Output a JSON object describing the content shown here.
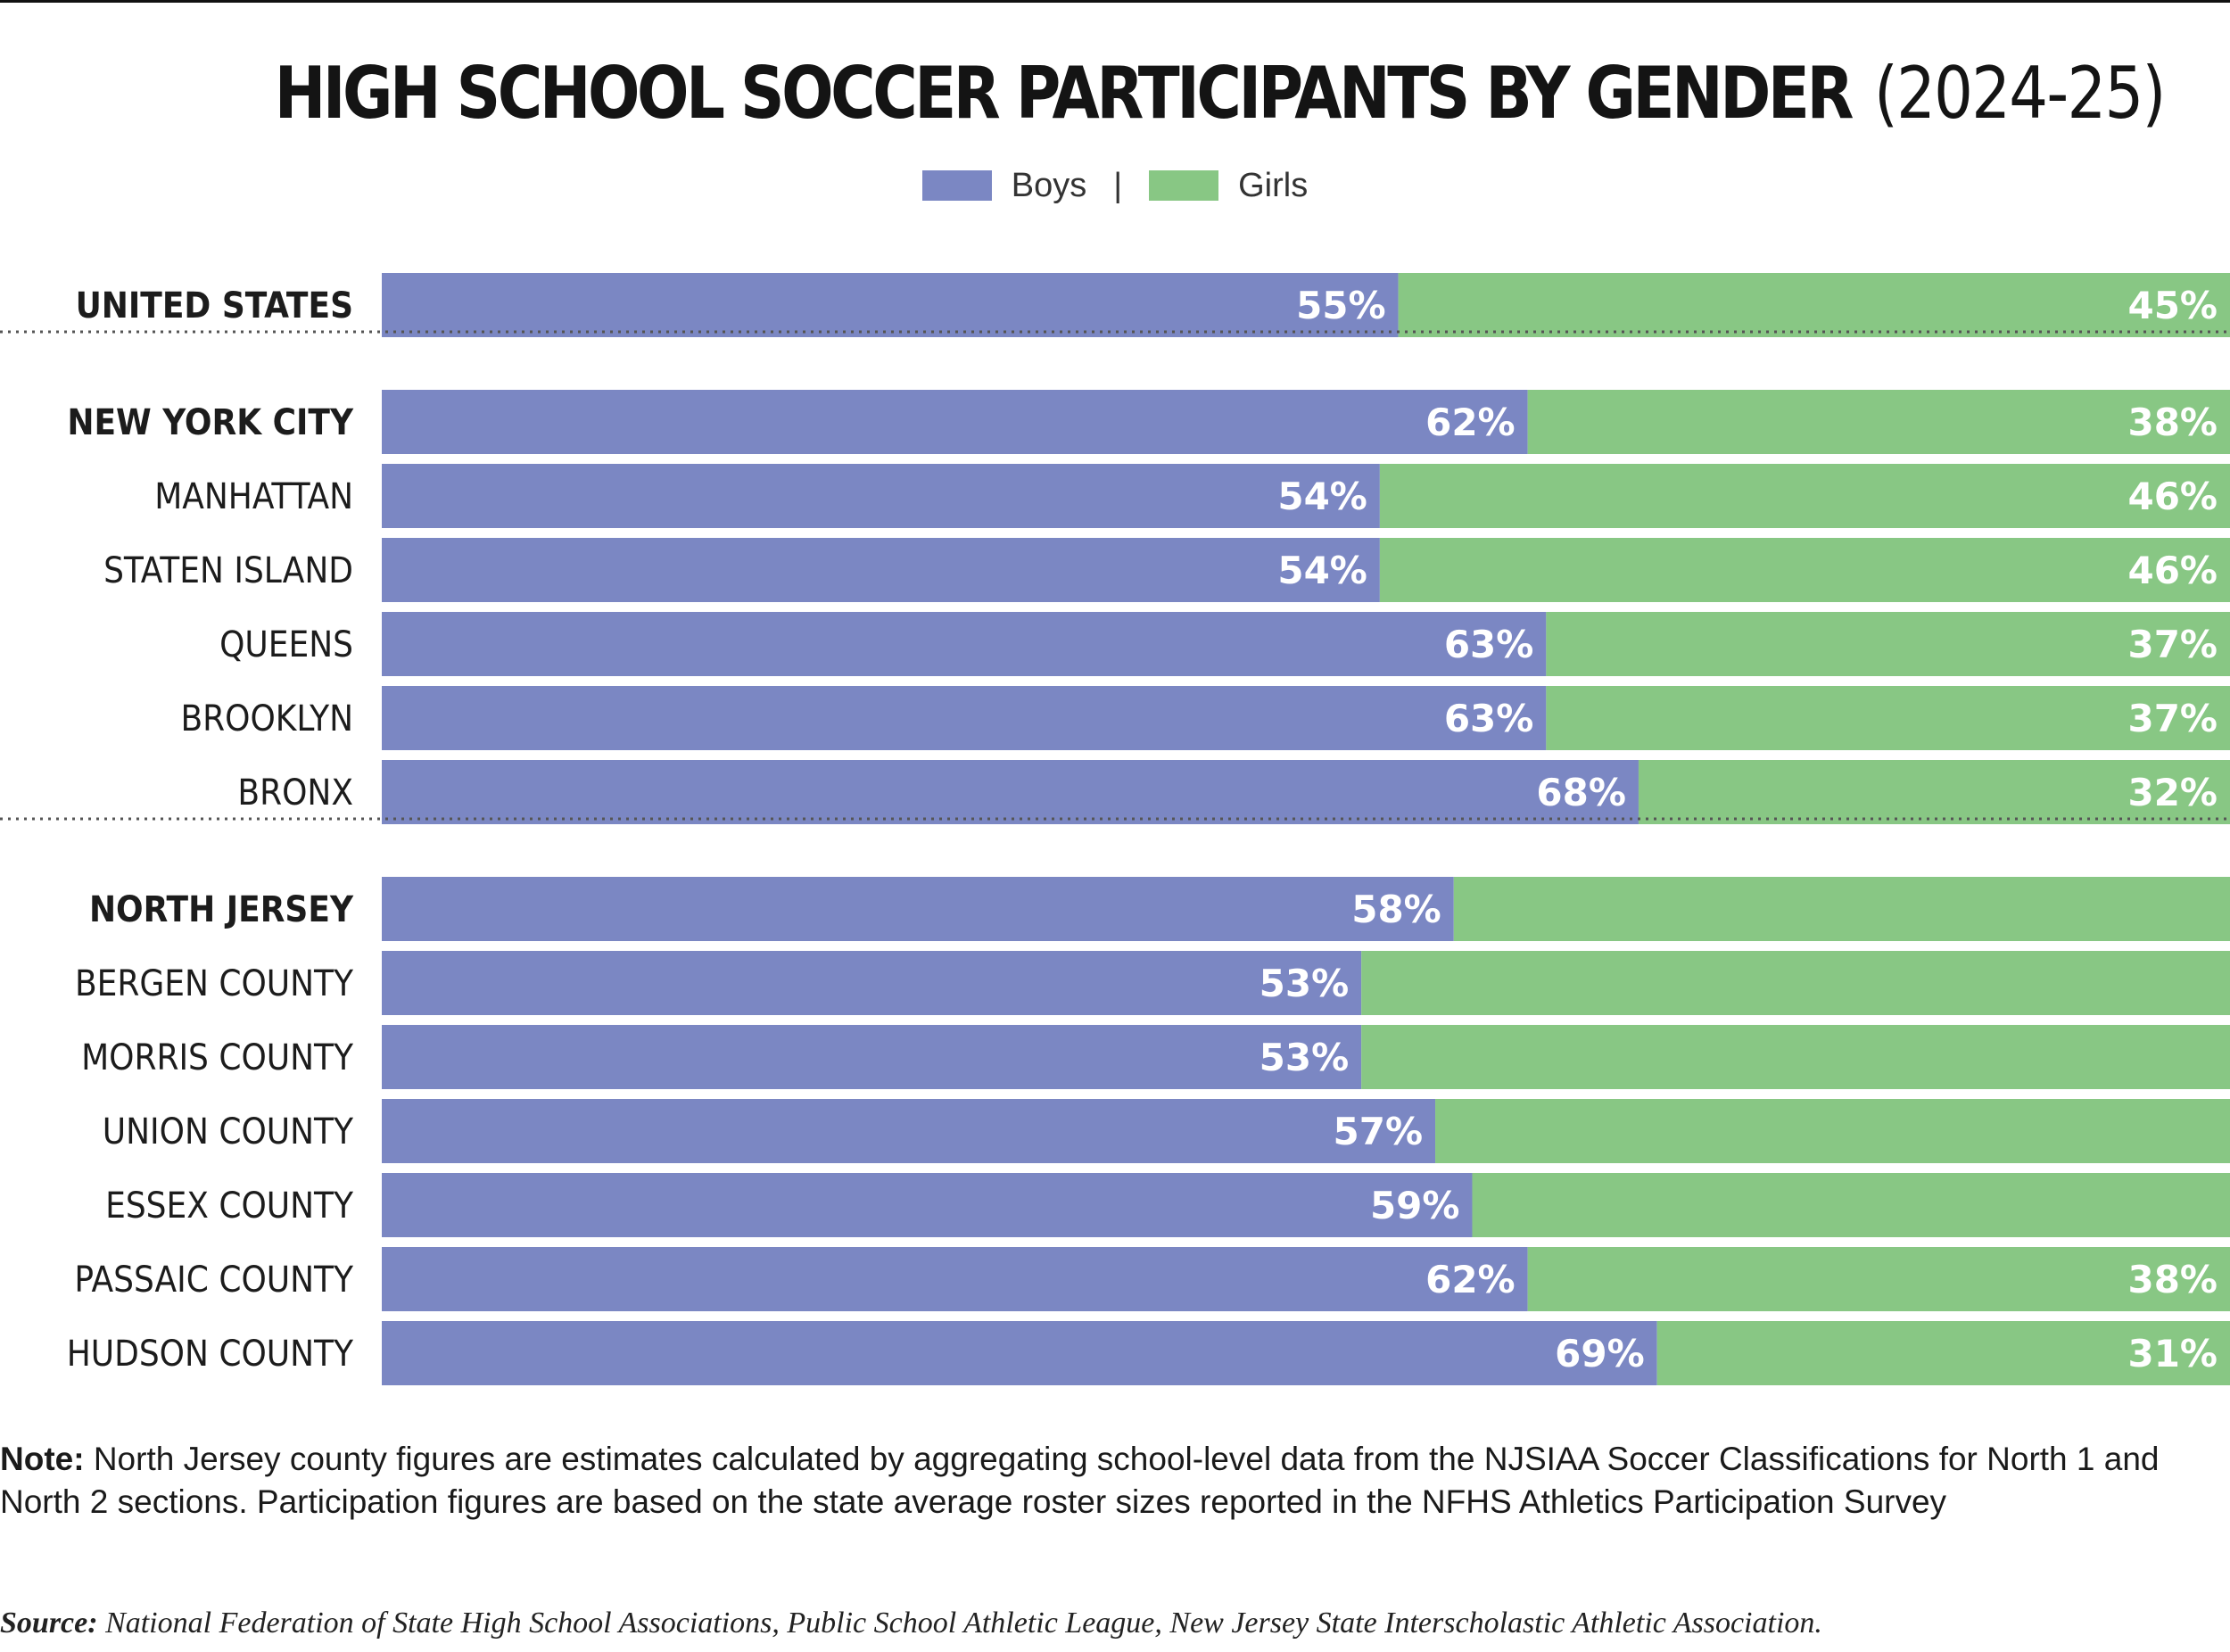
{
  "title": {
    "main": "HIGH SCHOOL SOCCER PARTICIPANTS BY GENDER",
    "year": "(2024-25)"
  },
  "legend": {
    "boys": "Boys",
    "separator": "|",
    "girls": "Girls"
  },
  "colors": {
    "boys": "#7b87c3",
    "girls": "#88c784",
    "divider": "#555555"
  },
  "chart_data": {
    "type": "bar",
    "orientation": "horizontal",
    "stacked": true,
    "title": "HIGH SCHOOL SOCCER PARTICIPANTS BY GENDER (2024-25)",
    "xlabel": "",
    "ylabel": "",
    "xlim": [
      0,
      100
    ],
    "unit": "%",
    "legend_position": "top-center",
    "categories": [
      "UNITED STATES",
      "NEW YORK CITY",
      "MANHATTAN",
      "STATEN ISLAND",
      "QUEENS",
      "BROOKLYN",
      "BRONX",
      "NORTH JERSEY",
      "BERGEN COUNTY",
      "MORRIS COUNTY",
      "UNION COUNTY",
      "ESSEX COUNTY",
      "PASSAIC COUNTY",
      "HUDSON COUNTY"
    ],
    "bold_categories": [
      "UNITED STATES",
      "NEW YORK CITY",
      "NORTH JERSEY"
    ],
    "groups": [
      [
        "UNITED STATES"
      ],
      [
        "NEW YORK CITY",
        "MANHATTAN",
        "STATEN ISLAND",
        "QUEENS",
        "BROOKLYN",
        "BRONX"
      ],
      [
        "NORTH JERSEY",
        "BERGEN COUNTY",
        "MORRIS COUNTY",
        "UNION COUNTY",
        "ESSEX COUNTY",
        "PASSAIC COUNTY",
        "HUDSON COUNTY"
      ]
    ],
    "series": [
      {
        "name": "Boys",
        "values": [
          55,
          62,
          54,
          54,
          63,
          63,
          68,
          58,
          53,
          53,
          57,
          59,
          62,
          69
        ],
        "labels": [
          "55%",
          "62%",
          "54%",
          "54%",
          "63%",
          "63%",
          "68%",
          "58%",
          "53%",
          "53%",
          "57%",
          "59%",
          "62%",
          "69%"
        ]
      },
      {
        "name": "Girls",
        "values": [
          45,
          38,
          46,
          46,
          37,
          37,
          32,
          42,
          47,
          47,
          43,
          41,
          38,
          31
        ],
        "labels": [
          "45%",
          "38%",
          "46%",
          "46%",
          "37%",
          "37%",
          "32%",
          "",
          "",
          "",
          "",
          "",
          "38%",
          "31%"
        ]
      }
    ]
  },
  "note": {
    "label": "Note:",
    "text": "North Jersey county figures are estimates calculated by aggregating school-level data from the NJSIAA Soccer Classifications for North 1 and North 2 sections. Participation figures are based on the state average roster sizes reported in the NFHS Athletics Participation Survey"
  },
  "source": {
    "label": "Source:",
    "text": "National Federation of State High School Associations, Public School Athletic League, New Jersey State Interscholastic Athletic Association."
  }
}
